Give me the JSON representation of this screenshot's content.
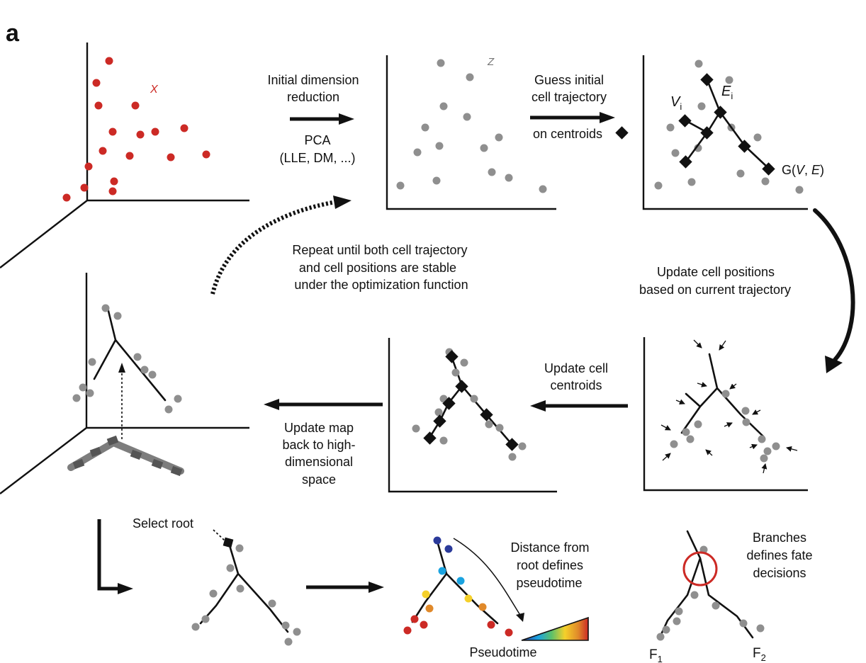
{
  "panel_letter": "a",
  "arrows": {
    "initial_reduction": {
      "line1": "Initial dimension",
      "line2": "reduction",
      "line3": "PCA",
      "line4": "(LLE, DM, ...)"
    },
    "guess_trajectory": {
      "line1": "Guess initial",
      "line2": "cell trajectory",
      "line3": "on centroids"
    },
    "repeat": {
      "line1": "Repeat until both cell trajectory",
      "line2": "and cell positions are stable",
      "line3": "under the optimization function"
    },
    "update_positions": {
      "line1": "Update cell positions",
      "line2": "based on current trajectory"
    },
    "update_centroids": {
      "line1": "Update cell",
      "line2": "centroids"
    },
    "update_map": {
      "line1": "Update map",
      "line2": "back to high-",
      "line3": "dimensional",
      "line4": "space"
    }
  },
  "axis_letters": {
    "x": "X",
    "z": "Z"
  },
  "graph_labels": {
    "vertex": "V",
    "vertex_sub": "i",
    "edge": "E",
    "edge_sub": "i",
    "graph_prefix": "G(",
    "graph_v": "V",
    "graph_sep": ", ",
    "graph_e": "E",
    "graph_suffix": ")"
  },
  "bottom": {
    "select_root": "Select root",
    "distance": {
      "line1": "Distance from",
      "line2": "root defines",
      "line3": "pseudotime"
    },
    "pseudotime": "Pseudotime",
    "branches": {
      "line1": "Branches",
      "line2": "defines fate",
      "line3": "decisions"
    },
    "fate_letter": "F",
    "fate1_sub": "1",
    "fate2_sub": "2"
  },
  "colors": {
    "red_cells": "#cc2a25",
    "gray_cells": "#8f8f8f",
    "ink": "#111111",
    "branch_circle": "#cc2a25",
    "pseudotime_colors": [
      "#2b3a9a",
      "#1aa3e0",
      "#f5d02a",
      "#e0892a",
      "#cc2a25"
    ]
  }
}
